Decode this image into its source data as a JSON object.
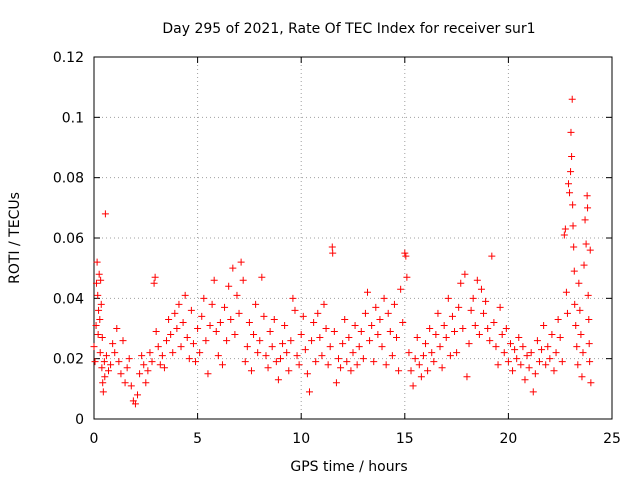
{
  "chart_data": {
    "type": "scatter",
    "title": "Day 295 of 2021, Rate Of TEC Index for receiver sur1",
    "xlabel": "GPS time / hours",
    "ylabel": "ROTI / TECUs",
    "xlim": [
      0,
      25
    ],
    "ylim": [
      0,
      0.12
    ],
    "xticks": [
      "0",
      "5",
      "10",
      "15",
      "20",
      "25"
    ],
    "yticks": [
      "0",
      "0.02",
      "0.04",
      "0.06",
      "0.08",
      "0.1",
      "0.12"
    ],
    "grid": true,
    "marker": "+",
    "color": "#ff0000",
    "series": [
      {
        "points": [
          [
            0.0,
            0.024
          ],
          [
            0.05,
            0.019
          ],
          [
            0.1,
            0.031
          ],
          [
            0.12,
            0.045
          ],
          [
            0.15,
            0.052
          ],
          [
            0.18,
            0.041
          ],
          [
            0.2,
            0.028
          ],
          [
            0.22,
            0.036
          ],
          [
            0.25,
            0.048
          ],
          [
            0.28,
            0.033
          ],
          [
            0.3,
            0.022
          ],
          [
            0.32,
            0.046
          ],
          [
            0.35,
            0.038
          ],
          [
            0.38,
            0.017
          ],
          [
            0.4,
            0.027
          ],
          [
            0.42,
            0.012
          ],
          [
            0.45,
            0.009
          ],
          [
            0.5,
            0.019
          ],
          [
            0.52,
            0.014
          ],
          [
            0.55,
            0.068
          ],
          [
            0.6,
            0.021
          ],
          [
            0.7,
            0.016
          ],
          [
            0.8,
            0.018
          ],
          [
            0.9,
            0.025
          ],
          [
            1.0,
            0.022
          ],
          [
            1.1,
            0.03
          ],
          [
            1.2,
            0.019
          ],
          [
            1.3,
            0.015
          ],
          [
            1.4,
            0.026
          ],
          [
            1.5,
            0.012
          ],
          [
            1.6,
            0.017
          ],
          [
            1.7,
            0.02
          ],
          [
            1.8,
            0.011
          ],
          [
            1.9,
            0.006
          ],
          [
            2.0,
            0.005
          ],
          [
            2.1,
            0.008
          ],
          [
            2.2,
            0.015
          ],
          [
            2.3,
            0.021
          ],
          [
            2.4,
            0.018
          ],
          [
            2.5,
            0.012
          ],
          [
            2.6,
            0.016
          ],
          [
            2.7,
            0.022
          ],
          [
            2.8,
            0.019
          ],
          [
            2.9,
            0.045
          ],
          [
            2.95,
            0.047
          ],
          [
            3.0,
            0.029
          ],
          [
            3.1,
            0.024
          ],
          [
            3.2,
            0.018
          ],
          [
            3.3,
            0.021
          ],
          [
            3.4,
            0.017
          ],
          [
            3.5,
            0.026
          ],
          [
            3.6,
            0.033
          ],
          [
            3.7,
            0.028
          ],
          [
            3.8,
            0.022
          ],
          [
            3.9,
            0.035
          ],
          [
            4.0,
            0.03
          ],
          [
            4.1,
            0.038
          ],
          [
            4.2,
            0.024
          ],
          [
            4.3,
            0.032
          ],
          [
            4.4,
            0.041
          ],
          [
            4.5,
            0.027
          ],
          [
            4.6,
            0.02
          ],
          [
            4.7,
            0.036
          ],
          [
            4.8,
            0.025
          ],
          [
            4.9,
            0.019
          ],
          [
            5.0,
            0.03
          ],
          [
            5.1,
            0.022
          ],
          [
            5.2,
            0.034
          ],
          [
            5.3,
            0.04
          ],
          [
            5.4,
            0.026
          ],
          [
            5.5,
            0.015
          ],
          [
            5.6,
            0.031
          ],
          [
            5.7,
            0.038
          ],
          [
            5.8,
            0.046
          ],
          [
            5.9,
            0.029
          ],
          [
            6.0,
            0.021
          ],
          [
            6.1,
            0.032
          ],
          [
            6.2,
            0.018
          ],
          [
            6.3,
            0.037
          ],
          [
            6.4,
            0.026
          ],
          [
            6.5,
            0.044
          ],
          [
            6.6,
            0.033
          ],
          [
            6.7,
            0.05
          ],
          [
            6.8,
            0.028
          ],
          [
            6.9,
            0.041
          ],
          [
            7.0,
            0.035
          ],
          [
            7.1,
            0.052
          ],
          [
            7.2,
            0.046
          ],
          [
            7.3,
            0.019
          ],
          [
            7.4,
            0.024
          ],
          [
            7.5,
            0.032
          ],
          [
            7.6,
            0.016
          ],
          [
            7.7,
            0.028
          ],
          [
            7.8,
            0.038
          ],
          [
            7.9,
            0.022
          ],
          [
            8.0,
            0.026
          ],
          [
            8.1,
            0.047
          ],
          [
            8.2,
            0.034
          ],
          [
            8.3,
            0.021
          ],
          [
            8.4,
            0.017
          ],
          [
            8.5,
            0.029
          ],
          [
            8.6,
            0.024
          ],
          [
            8.7,
            0.033
          ],
          [
            8.8,
            0.019
          ],
          [
            8.9,
            0.013
          ],
          [
            9.0,
            0.02
          ],
          [
            9.1,
            0.025
          ],
          [
            9.2,
            0.031
          ],
          [
            9.3,
            0.022
          ],
          [
            9.4,
            0.016
          ],
          [
            9.5,
            0.026
          ],
          [
            9.6,
            0.04
          ],
          [
            9.7,
            0.036
          ],
          [
            9.8,
            0.021
          ],
          [
            9.9,
            0.018
          ],
          [
            10.0,
            0.028
          ],
          [
            10.1,
            0.034
          ],
          [
            10.2,
            0.023
          ],
          [
            10.3,
            0.015
          ],
          [
            10.4,
            0.009
          ],
          [
            10.5,
            0.026
          ],
          [
            10.6,
            0.032
          ],
          [
            10.7,
            0.019
          ],
          [
            10.8,
            0.035
          ],
          [
            10.9,
            0.027
          ],
          [
            11.0,
            0.021
          ],
          [
            11.1,
            0.038
          ],
          [
            11.2,
            0.03
          ],
          [
            11.3,
            0.018
          ],
          [
            11.4,
            0.024
          ],
          [
            11.5,
            0.057
          ],
          [
            11.52,
            0.055
          ],
          [
            11.6,
            0.029
          ],
          [
            11.7,
            0.012
          ],
          [
            11.8,
            0.02
          ],
          [
            11.9,
            0.017
          ],
          [
            12.0,
            0.025
          ],
          [
            12.1,
            0.033
          ],
          [
            12.2,
            0.019
          ],
          [
            12.3,
            0.027
          ],
          [
            12.4,
            0.016
          ],
          [
            12.5,
            0.022
          ],
          [
            12.6,
            0.031
          ],
          [
            12.7,
            0.018
          ],
          [
            12.8,
            0.024
          ],
          [
            12.9,
            0.029
          ],
          [
            13.0,
            0.02
          ],
          [
            13.1,
            0.035
          ],
          [
            13.2,
            0.042
          ],
          [
            13.3,
            0.026
          ],
          [
            13.4,
            0.031
          ],
          [
            13.5,
            0.019
          ],
          [
            13.6,
            0.037
          ],
          [
            13.7,
            0.028
          ],
          [
            13.8,
            0.033
          ],
          [
            13.9,
            0.024
          ],
          [
            14.0,
            0.04
          ],
          [
            14.1,
            0.018
          ],
          [
            14.2,
            0.035
          ],
          [
            14.3,
            0.029
          ],
          [
            14.4,
            0.021
          ],
          [
            14.5,
            0.038
          ],
          [
            14.6,
            0.027
          ],
          [
            14.7,
            0.016
          ],
          [
            14.8,
            0.043
          ],
          [
            14.9,
            0.032
          ],
          [
            15.0,
            0.055
          ],
          [
            15.05,
            0.054
          ],
          [
            15.1,
            0.047
          ],
          [
            15.2,
            0.022
          ],
          [
            15.3,
            0.016
          ],
          [
            15.4,
            0.011
          ],
          [
            15.5,
            0.02
          ],
          [
            15.6,
            0.027
          ],
          [
            15.7,
            0.018
          ],
          [
            15.8,
            0.014
          ],
          [
            15.9,
            0.021
          ],
          [
            16.0,
            0.025
          ],
          [
            16.1,
            0.016
          ],
          [
            16.2,
            0.03
          ],
          [
            16.3,
            0.022
          ],
          [
            16.4,
            0.019
          ],
          [
            16.5,
            0.028
          ],
          [
            16.6,
            0.035
          ],
          [
            16.7,
            0.024
          ],
          [
            16.8,
            0.017
          ],
          [
            16.9,
            0.031
          ],
          [
            17.0,
            0.027
          ],
          [
            17.1,
            0.04
          ],
          [
            17.2,
            0.021
          ],
          [
            17.3,
            0.034
          ],
          [
            17.4,
            0.029
          ],
          [
            17.5,
            0.022
          ],
          [
            17.6,
            0.037
          ],
          [
            17.7,
            0.045
          ],
          [
            17.8,
            0.03
          ],
          [
            17.9,
            0.048
          ],
          [
            18.0,
            0.014
          ],
          [
            18.1,
            0.025
          ],
          [
            18.2,
            0.036
          ],
          [
            18.3,
            0.04
          ],
          [
            18.4,
            0.031
          ],
          [
            18.5,
            0.046
          ],
          [
            18.6,
            0.028
          ],
          [
            18.7,
            0.043
          ],
          [
            18.8,
            0.035
          ],
          [
            18.9,
            0.039
          ],
          [
            19.0,
            0.03
          ],
          [
            19.1,
            0.026
          ],
          [
            19.2,
            0.054
          ],
          [
            19.3,
            0.032
          ],
          [
            19.4,
            0.024
          ],
          [
            19.5,
            0.018
          ],
          [
            19.6,
            0.037
          ],
          [
            19.7,
            0.028
          ],
          [
            19.8,
            0.022
          ],
          [
            19.9,
            0.03
          ],
          [
            20.0,
            0.019
          ],
          [
            20.1,
            0.025
          ],
          [
            20.2,
            0.016
          ],
          [
            20.3,
            0.023
          ],
          [
            20.4,
            0.02
          ],
          [
            20.5,
            0.027
          ],
          [
            20.6,
            0.018
          ],
          [
            20.7,
            0.024
          ],
          [
            20.8,
            0.013
          ],
          [
            20.9,
            0.021
          ],
          [
            21.0,
            0.017
          ],
          [
            21.1,
            0.022
          ],
          [
            21.2,
            0.009
          ],
          [
            21.3,
            0.015
          ],
          [
            21.4,
            0.026
          ],
          [
            21.5,
            0.019
          ],
          [
            21.6,
            0.023
          ],
          [
            21.7,
            0.031
          ],
          [
            21.8,
            0.018
          ],
          [
            21.9,
            0.024
          ],
          [
            22.0,
            0.02
          ],
          [
            22.1,
            0.028
          ],
          [
            22.2,
            0.016
          ],
          [
            22.3,
            0.022
          ],
          [
            22.4,
            0.033
          ],
          [
            22.5,
            0.027
          ],
          [
            22.6,
            0.019
          ],
          [
            22.7,
            0.061
          ],
          [
            22.75,
            0.063
          ],
          [
            22.8,
            0.042
          ],
          [
            22.85,
            0.035
          ],
          [
            22.9,
            0.078
          ],
          [
            22.95,
            0.075
          ],
          [
            23.0,
            0.082
          ],
          [
            23.02,
            0.095
          ],
          [
            23.05,
            0.087
          ],
          [
            23.08,
            0.106
          ],
          [
            23.1,
            0.071
          ],
          [
            23.12,
            0.064
          ],
          [
            23.15,
            0.057
          ],
          [
            23.18,
            0.049
          ],
          [
            23.2,
            0.038
          ],
          [
            23.25,
            0.031
          ],
          [
            23.3,
            0.024
          ],
          [
            23.35,
            0.018
          ],
          [
            23.4,
            0.045
          ],
          [
            23.45,
            0.036
          ],
          [
            23.5,
            0.028
          ],
          [
            23.55,
            0.014
          ],
          [
            23.6,
            0.022
          ],
          [
            23.65,
            0.051
          ],
          [
            23.7,
            0.066
          ],
          [
            23.75,
            0.058
          ],
          [
            23.8,
            0.074
          ],
          [
            23.82,
            0.07
          ],
          [
            23.85,
            0.041
          ],
          [
            23.88,
            0.033
          ],
          [
            23.9,
            0.025
          ],
          [
            23.92,
            0.019
          ],
          [
            23.95,
            0.056
          ],
          [
            23.98,
            0.012
          ]
        ]
      }
    ]
  }
}
